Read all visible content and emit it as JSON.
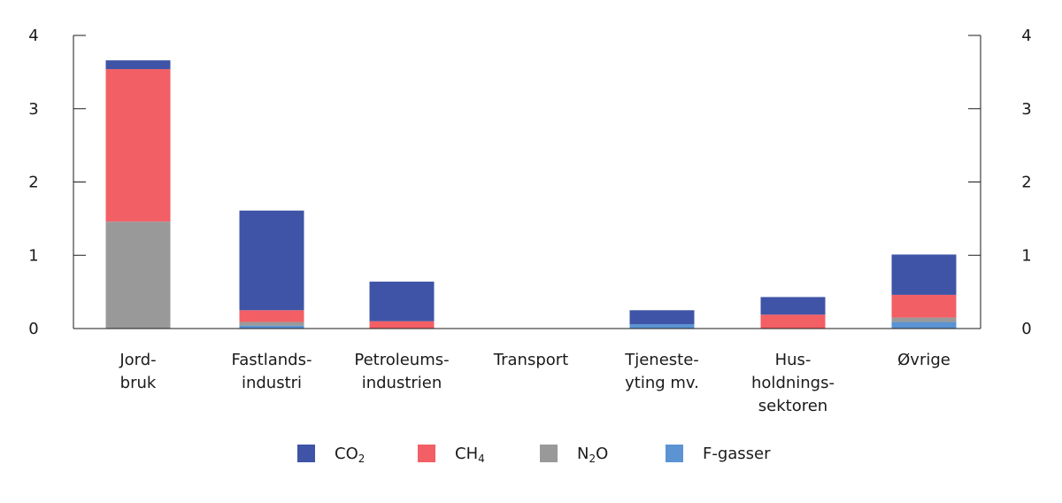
{
  "chart_data": {
    "type": "bar",
    "stacked": true,
    "categories": [
      [
        "Jord-",
        "bruk"
      ],
      [
        "Fastlands-",
        "industri"
      ],
      [
        "Petroleums-",
        "industrien"
      ],
      [
        "Transport"
      ],
      [
        "Tjeneste-",
        "yting mv."
      ],
      [
        "Hus-",
        "holdnings-",
        "sektoren"
      ],
      [
        "Øvrige"
      ]
    ],
    "series": [
      {
        "name": "F-gasser",
        "label_base": "F-gasser",
        "label_sub": "",
        "color": "#5b93d3",
        "values": [
          0.0,
          0.04,
          0.0,
          0.0,
          0.06,
          0.0,
          0.09
        ]
      },
      {
        "name": "N2O",
        "label_base": "N",
        "label_sub": "2",
        "label_after": "O",
        "color": "#9a999a",
        "values": [
          1.46,
          0.05,
          0.0,
          0.0,
          0.0,
          0.0,
          0.06
        ]
      },
      {
        "name": "CH4",
        "label_base": "CH",
        "label_sub": "4",
        "label_after": "",
        "color": "#f25f65",
        "values": [
          2.08,
          0.16,
          0.1,
          0.0,
          0.0,
          0.19,
          0.31
        ]
      },
      {
        "name": "CO2",
        "label_base": "CO",
        "label_sub": "2",
        "label_after": "",
        "color": "#3f54a6",
        "values": [
          0.12,
          1.36,
          0.54,
          0.0,
          0.19,
          0.24,
          0.55
        ]
      }
    ],
    "legend_order": [
      "CO2",
      "CH4",
      "N2O",
      "F-gasser"
    ],
    "ylim": [
      0,
      4
    ],
    "yticks": [
      0,
      1,
      2,
      3,
      4
    ],
    "secondary_ylim": [
      0,
      4
    ],
    "secondary_yticks": [
      0,
      1,
      2,
      3,
      4
    ],
    "grid": false,
    "legend_position": "bottom-center"
  }
}
